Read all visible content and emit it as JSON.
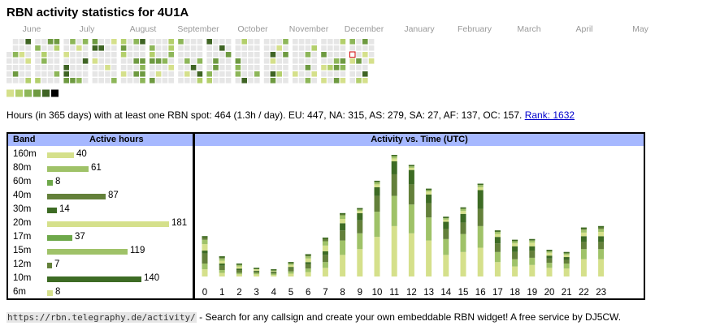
{
  "title": "RBN activity statistics for 4U1A",
  "heatmap": {
    "months": [
      "June",
      "July",
      "August",
      "September",
      "October",
      "November",
      "December",
      "January",
      "February",
      "March",
      "April",
      "May"
    ],
    "legend_colors": [
      "#d5e08b",
      "#b3cf6c",
      "#8db659",
      "#6e9a41",
      "#3f6424",
      "#000000"
    ]
  },
  "stats": {
    "text": "Hours (in 365 days) with at least one RBN spot: 464 (1.3h / day). EU: 447, NA: 315, AS: 279, SA: 27, AF: 137, OC: 157.",
    "rank_link": "Rank: 1632"
  },
  "band_table": {
    "col_band": "Band",
    "col_hours": "Active hours",
    "rows": [
      {
        "band": "160m",
        "hours": 40,
        "color": "#d5e08b"
      },
      {
        "band": "80m",
        "hours": 61,
        "color": "#9fc268"
      },
      {
        "band": "60m",
        "hours": 8,
        "color": "#6ea84a"
      },
      {
        "band": "40m",
        "hours": 87,
        "color": "#63803a"
      },
      {
        "band": "30m",
        "hours": 14,
        "color": "#3d6b24"
      },
      {
        "band": "20m",
        "hours": 181,
        "color": "#d5e08b"
      },
      {
        "band": "17m",
        "hours": 37,
        "color": "#6ea84a"
      },
      {
        "band": "15m",
        "hours": 119,
        "color": "#9fc268"
      },
      {
        "band": "12m",
        "hours": 7,
        "color": "#63803a"
      },
      {
        "band": "10m",
        "hours": 140,
        "color": "#3d6b24"
      },
      {
        "band": "6m",
        "hours": 8,
        "color": "#d5e08b"
      }
    ]
  },
  "time_chart": {
    "title": "Activity vs. Time (UTC)",
    "hours": [
      "0",
      "1",
      "2",
      "3",
      "4",
      "5",
      "6",
      "7",
      "8",
      "9",
      "10",
      "11",
      "12",
      "13",
      "14",
      "15",
      "16",
      "17",
      "18",
      "19",
      "20",
      "21",
      "22",
      "23"
    ],
    "segment_colors": [
      "#d5e08b",
      "#9fc268",
      "#63803a",
      "#3d6b24",
      "#d5e08b",
      "#9fc268",
      "#63803a"
    ],
    "stacks": [
      [
        10,
        8,
        14,
        4,
        9,
        6,
        5
      ],
      [
        5,
        4,
        6,
        3,
        4,
        3,
        3
      ],
      [
        3,
        2,
        4,
        2,
        3,
        2,
        2
      ],
      [
        3,
        2,
        2,
        1,
        2,
        1,
        1
      ],
      [
        2,
        2,
        2,
        1,
        1,
        1,
        1
      ],
      [
        4,
        3,
        4,
        2,
        3,
        2,
        2
      ],
      [
        6,
        5,
        6,
        3,
        5,
        3,
        3
      ],
      [
        12,
        8,
        10,
        5,
        8,
        6,
        5
      ],
      [
        30,
        20,
        14,
        10,
        6,
        5,
        3
      ],
      [
        38,
        22,
        18,
        10,
        3,
        2,
        2
      ],
      [
        55,
        35,
        22,
        12,
        4,
        3,
        2
      ],
      [
        70,
        42,
        30,
        18,
        4,
        3,
        2
      ],
      [
        60,
        40,
        28,
        20,
        3,
        2,
        2
      ],
      [
        50,
        32,
        20,
        12,
        4,
        2,
        2
      ],
      [
        30,
        22,
        14,
        10,
        3,
        2,
        2
      ],
      [
        34,
        25,
        16,
        12,
        4,
        3,
        2
      ],
      [
        40,
        30,
        24,
        26,
        4,
        3,
        2
      ],
      [
        20,
        14,
        12,
        9,
        4,
        3,
        2
      ],
      [
        14,
        10,
        10,
        8,
        4,
        3,
        2
      ],
      [
        16,
        10,
        10,
        6,
        5,
        3,
        2
      ],
      [
        12,
        7,
        6,
        4,
        4,
        2,
        2
      ],
      [
        11,
        7,
        5,
        4,
        3,
        2,
        2
      ],
      [
        24,
        14,
        10,
        8,
        5,
        4,
        3
      ],
      [
        24,
        14,
        10,
        8,
        6,
        4,
        4
      ]
    ]
  },
  "footer": {
    "url": "https://rbn.telegraphy.de/activity/",
    "text": " - Search for any callsign and create your own embeddable RBN widget! A free service by DJ5CW."
  }
}
